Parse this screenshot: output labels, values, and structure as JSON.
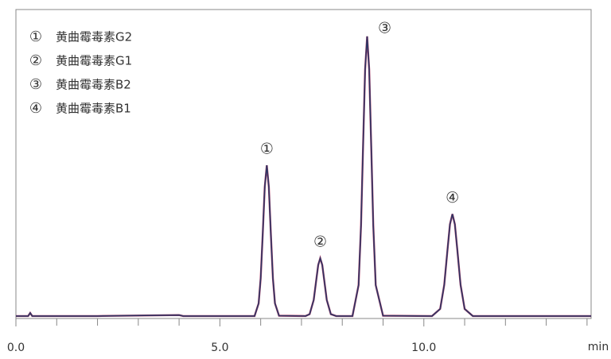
{
  "chart_data": {
    "type": "line",
    "xlabel": "min",
    "xlim": [
      0,
      14.1
    ],
    "ylim": [
      0,
      100
    ],
    "xticks": [
      {
        "value": 0,
        "label": "0.0"
      },
      {
        "value": 5,
        "label": "5.0"
      },
      {
        "value": 10,
        "label": "10.0"
      }
    ],
    "xminor": [
      1,
      2,
      3,
      4,
      6,
      7,
      8,
      9,
      11,
      12,
      13,
      14
    ],
    "x": [
      0,
      0.3,
      0.35,
      0.4,
      2.0,
      4.0,
      4.1,
      5.5,
      5.85,
      5.95,
      6.0,
      6.05,
      6.1,
      6.15,
      6.2,
      6.25,
      6.3,
      6.35,
      6.45,
      7.1,
      7.2,
      7.3,
      7.36,
      7.41,
      7.46,
      7.51,
      7.56,
      7.62,
      7.72,
      7.85,
      8.25,
      8.4,
      8.46,
      8.51,
      8.56,
      8.61,
      8.66,
      8.71,
      8.76,
      8.82,
      9.0,
      10.2,
      10.4,
      10.5,
      10.58,
      10.64,
      10.7,
      10.76,
      10.82,
      10.9,
      11.0,
      11.2,
      14.1
    ],
    "series": [
      {
        "color": "#b0406a",
        "values": [
          0.8,
          0.8,
          1.8,
          0.8,
          0.8,
          1.1,
          0.8,
          0.8,
          0.8,
          4.9,
          13.0,
          27.2,
          42.6,
          49.6,
          42.6,
          27.2,
          13.0,
          4.9,
          0.9,
          0.8,
          1.4,
          6.0,
          12.2,
          17.3,
          19.5,
          17.3,
          12.2,
          6.0,
          1.4,
          0.8,
          0.8,
          10.8,
          30.2,
          55.7,
          80.6,
          91.3,
          80.6,
          55.7,
          30.2,
          10.8,
          0.9,
          0.8,
          3.1,
          10.9,
          22.3,
          30.5,
          33.8,
          30.5,
          22.3,
          10.9,
          3.1,
          0.8,
          0.8
        ]
      },
      {
        "color": "#2e3563",
        "values": [
          0.8,
          0.8,
          1.8,
          0.8,
          0.8,
          1.1,
          0.8,
          0.8,
          0.8,
          4.9,
          13.0,
          27.2,
          42.6,
          49.6,
          42.6,
          27.2,
          13.0,
          4.9,
          0.9,
          0.8,
          1.4,
          6.0,
          12.2,
          17.3,
          19.5,
          17.3,
          12.2,
          6.0,
          1.4,
          0.8,
          0.8,
          10.8,
          30.2,
          55.7,
          80.6,
          91.3,
          80.6,
          55.7,
          30.2,
          10.8,
          0.9,
          0.8,
          3.1,
          10.9,
          22.3,
          30.5,
          33.8,
          30.5,
          22.3,
          10.9,
          3.1,
          0.8,
          0.8
        ]
      }
    ],
    "peak_labels": [
      "①",
      "②",
      "③",
      "④"
    ],
    "legend": [
      {
        "marker": "①",
        "name": "黄曲霉毒素G2"
      },
      {
        "marker": "②",
        "name": "黄曲霉毒素G1"
      },
      {
        "marker": "③",
        "name": "黄曲霉毒素B2"
      },
      {
        "marker": "④",
        "name": "黄曲霉毒素B1"
      }
    ]
  }
}
